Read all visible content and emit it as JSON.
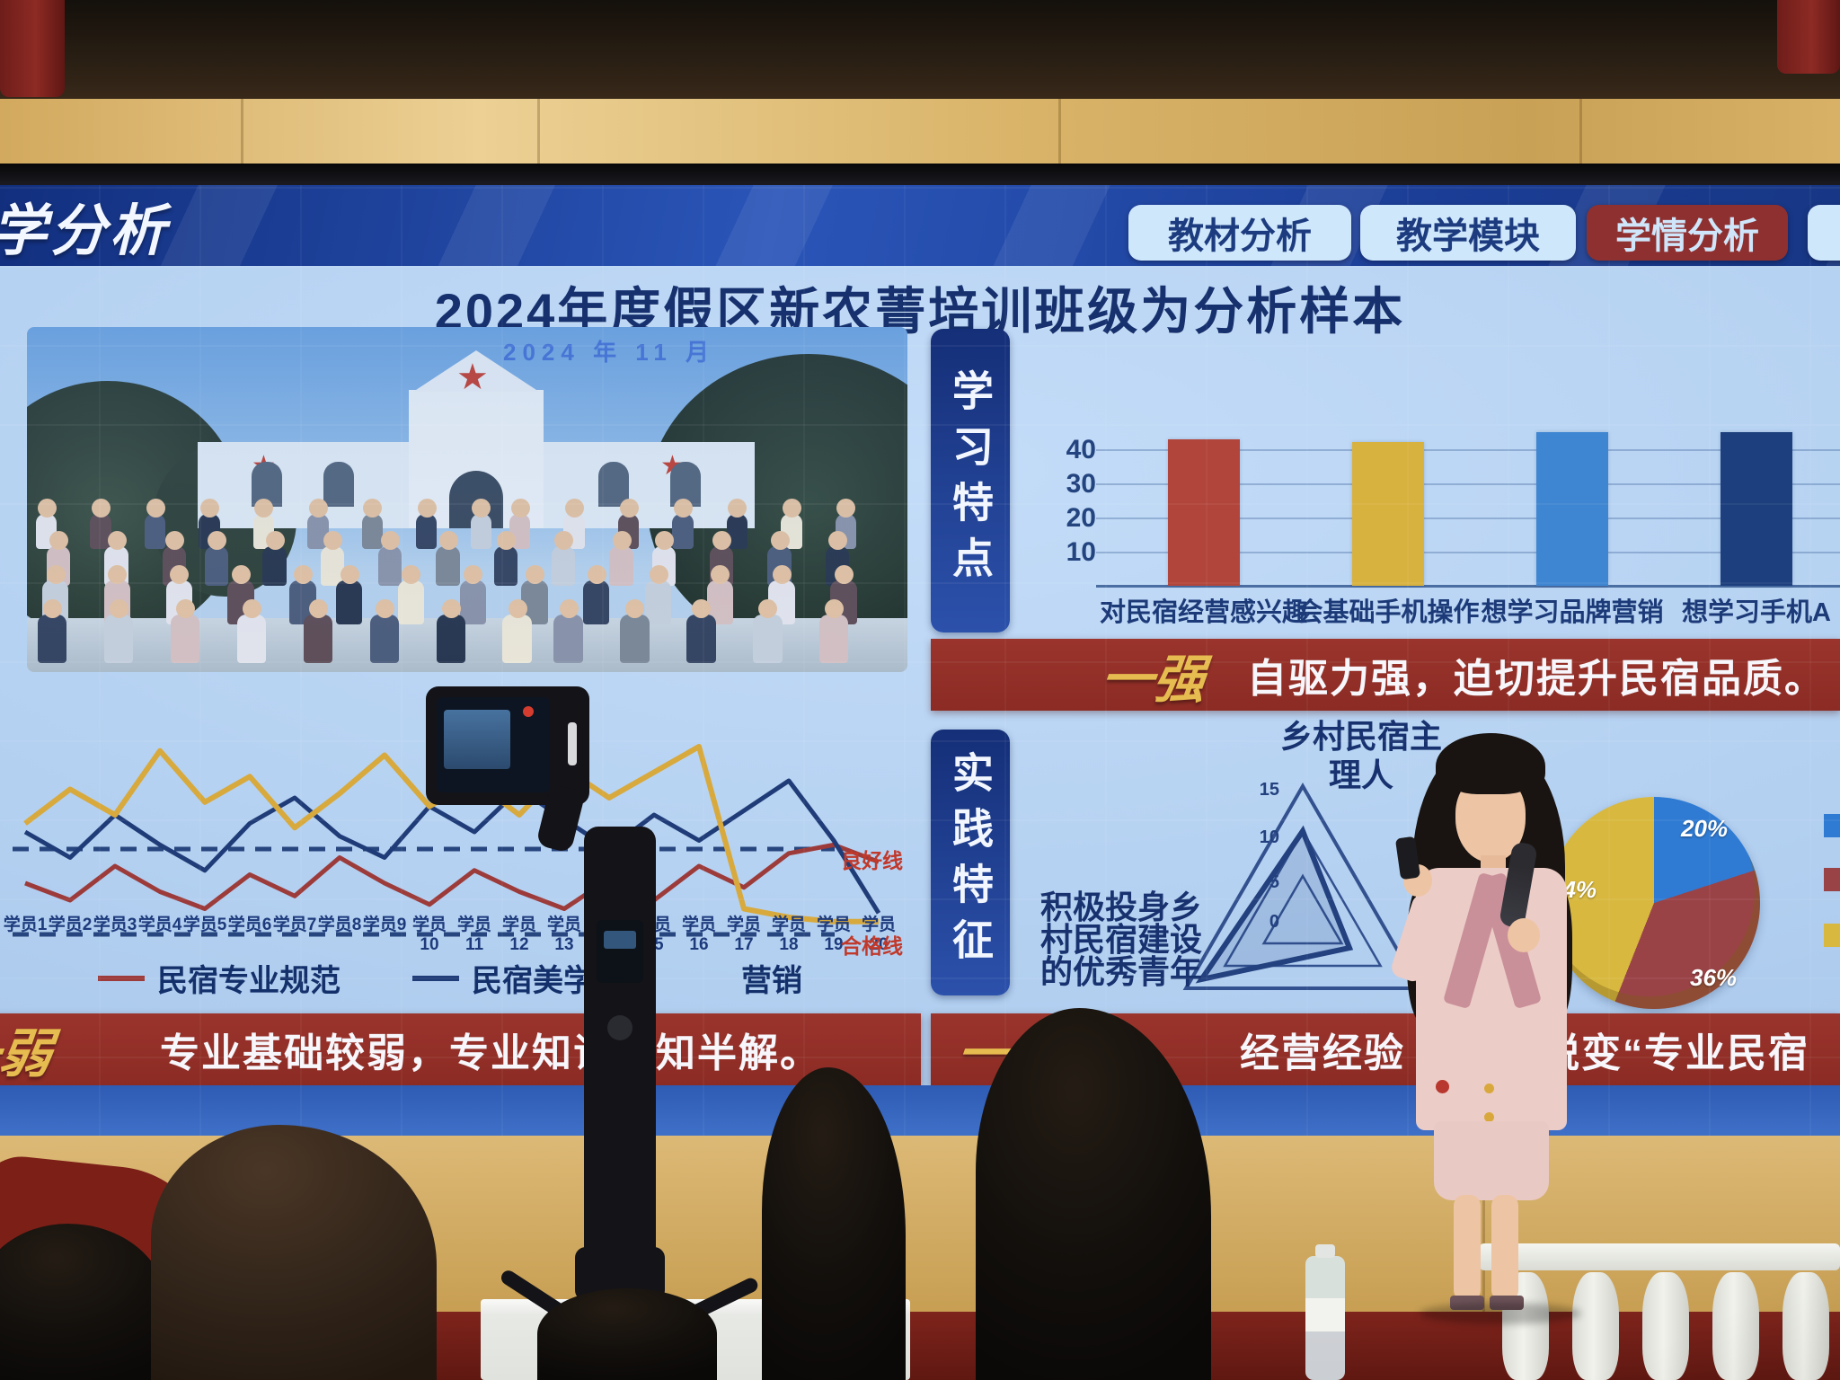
{
  "header": {
    "screen_title": "学分析",
    "tabs": [
      {
        "label": "教材分析",
        "active": false
      },
      {
        "label": "教学模块",
        "active": false
      },
      {
        "label": "学情分析",
        "active": true
      },
      {
        "label": "",
        "active": false
      }
    ]
  },
  "slide": {
    "title": "2024年度假区新农菁培训班级为分析样本",
    "photo": {
      "date": "2024 年 11 月"
    },
    "study": {
      "banner": "学习特点",
      "callout": {
        "label": "一强",
        "text": "自驱力强，迫切提升民宿品质。"
      }
    },
    "weak": {
      "label": "一弱",
      "text": "专业基础较弱，专业知识一知半解。"
    },
    "practice": {
      "banner": "实践特征",
      "radar_title_1": "乡村民宿主",
      "radar_title_2": "理人",
      "lines": [
        "积极投身乡",
        "村民宿建设",
        "的优秀青年"
      ],
      "callout": {
        "label": "一优势",
        "text_a": "经营经验",
        "text_b": "蜕变“专业民宿"
      }
    }
  },
  "colors": {
    "accent_red_banner": "#8f2e27",
    "gold": "#e6bb4f",
    "navy_text": "#17326f",
    "screen_blue": "#b2cff0",
    "active_tab_red": "#8f3030"
  },
  "chart_data": [
    {
      "type": "bar",
      "title": "",
      "categories": [
        "对民宿经营感兴趣",
        "会基础手机操作",
        "想学习品牌营销",
        "想学习手机A"
      ],
      "values": [
        43,
        42,
        45,
        45
      ],
      "colors": [
        "#b2453b",
        "#d8b23f",
        "#3f86d2",
        "#1e3f7e"
      ],
      "yticks": [
        10,
        20,
        30,
        40
      ],
      "ylim": [
        0,
        50
      ],
      "xlabel": "",
      "ylabel": ""
    },
    {
      "type": "line",
      "x": [
        "学员1",
        "学员2",
        "学员3",
        "学员4",
        "学员5",
        "学员6",
        "学员7",
        "学员8",
        "学员9",
        "学员10",
        "学员11",
        "学员12",
        "学员13",
        "学员14",
        "学员15",
        "学员16",
        "学员17",
        "学员18",
        "学员19",
        "学员20"
      ],
      "series": [
        {
          "name": "民宿专业规范",
          "color": "#9c3b3a",
          "values": [
            7.2,
            6.8,
            7.6,
            7.0,
            6.6,
            7.4,
            6.9,
            7.8,
            7.2,
            6.7,
            7.5,
            7.0,
            6.6,
            7.3,
            6.8,
            7.6,
            7.1,
            7.9,
            8.1,
            7.7
          ]
        },
        {
          "name": "民宿美学素养",
          "color": "#203c78",
          "values": [
            8.4,
            7.8,
            8.8,
            8.1,
            7.5,
            8.6,
            9.2,
            8.3,
            7.8,
            9.0,
            8.4,
            9.4,
            8.7,
            8.0,
            8.8,
            8.2,
            8.9,
            9.6,
            8.2,
            6.5
          ]
        },
        {
          "name": "营销",
          "color": "#d8a93c",
          "values": [
            8.6,
            9.4,
            8.8,
            10.3,
            9.1,
            9.7,
            8.5,
            9.3,
            10.2,
            9.0,
            9.6,
            8.8,
            9.9,
            9.2,
            9.8,
            10.4,
            6.6,
            6.4,
            6.3,
            6.3
          ]
        }
      ],
      "ref_lines": [
        {
          "label": "良好线",
          "value": 8
        },
        {
          "label": "合格线",
          "value": 6
        }
      ],
      "ylim": [
        5.5,
        11
      ],
      "legend_position": "bottom"
    },
    {
      "type": "radar",
      "title": "乡村民宿主理人",
      "ticks": [
        "15",
        "10",
        "5",
        "0"
      ],
      "max": 15,
      "axes": 3,
      "values": [
        10,
        6,
        13
      ],
      "color": "#23407f"
    },
    {
      "type": "pie",
      "labels": [
        "20%",
        "36%",
        "44%"
      ],
      "values": [
        20,
        36,
        44
      ],
      "colors": [
        "#2f7bd3",
        "#9a4347",
        "#d8b83f"
      ],
      "legend_labels": [
        "",
        "",
        ""
      ]
    }
  ]
}
